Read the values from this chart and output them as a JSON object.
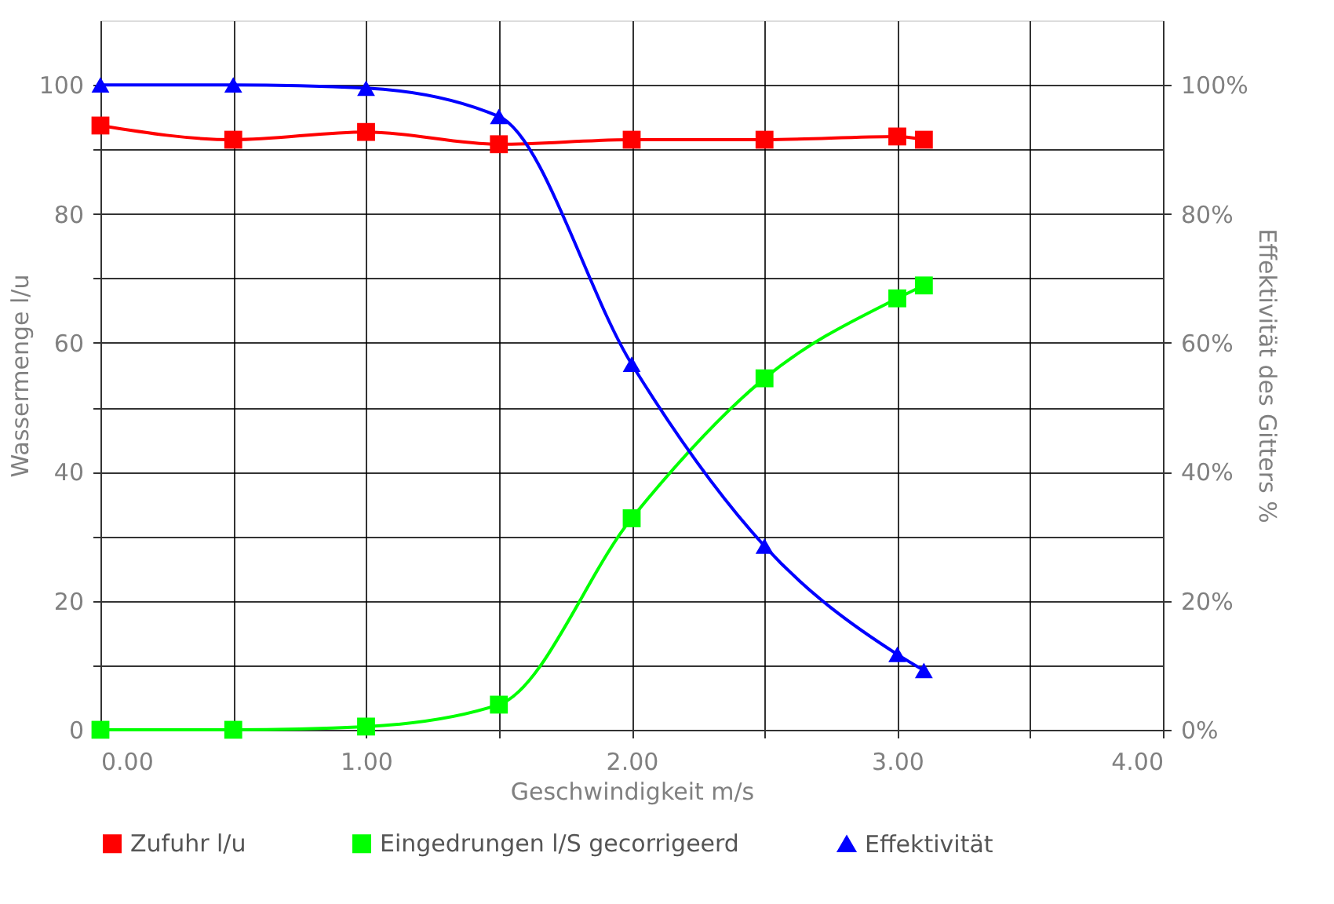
{
  "chart_data": {
    "type": "line",
    "xlabel": "Geschwindigkeit  m/s",
    "ylabel": "Wassermenge  l/u",
    "y2label": "Effektivität des Gitters %",
    "x": [
      0,
      0.5,
      1.0,
      1.5,
      2.0,
      2.5,
      3.0,
      3.1
    ],
    "series": [
      {
        "name": "Zufuhr  l/u",
        "color": "#ff0000",
        "marker": "square",
        "values": [
          93.7,
          91.5,
          92.7,
          90.8,
          91.5,
          91.5,
          92.0,
          91.5
        ]
      },
      {
        "name": "Eingedrungen l/S gecorrigeerd",
        "color": "#00ff00",
        "marker": "square",
        "values": [
          0,
          0,
          0.5,
          3.9,
          32.8,
          54.5,
          66.9,
          68.9
        ]
      },
      {
        "name": "Effektivität",
        "color": "#0000ff",
        "marker": "triangle",
        "axis": "y2",
        "values": [
          100,
          100,
          99.5,
          95.1,
          56.7,
          28.5,
          11.7,
          9.2
        ]
      }
    ],
    "xlim": [
      0,
      4
    ],
    "xticks": [
      {
        "value": 0,
        "label": "0.00"
      },
      {
        "value": 0.5,
        "label": null
      },
      {
        "value": 1,
        "label": "1.00"
      },
      {
        "value": 1.5,
        "label": null
      },
      {
        "value": 2,
        "label": "2.00"
      },
      {
        "value": 2.5,
        "label": null
      },
      {
        "value": 3,
        "label": "3.00"
      },
      {
        "value": 3.5,
        "label": null
      },
      {
        "value": 4,
        "label": "4.00"
      }
    ],
    "ylim": [
      0,
      110
    ],
    "yticks": [
      0,
      {
        "value": 10,
        "label": null
      },
      20,
      {
        "value": 30,
        "label": null
      },
      40,
      {
        "value": 50,
        "label": null
      },
      60,
      {
        "value": 70,
        "label": null
      },
      80,
      {
        "value": 90,
        "label": null
      },
      100
    ],
    "y2lim": [
      0,
      110
    ],
    "y2ticks": [
      {
        "value": 0,
        "label": "0%"
      },
      {
        "value": 20,
        "label": "20%"
      },
      {
        "value": 40,
        "label": "40%"
      },
      {
        "value": 60,
        "label": "60%"
      },
      {
        "value": 80,
        "label": "80%"
      },
      {
        "value": 100,
        "label": "100%"
      }
    ],
    "grid": true,
    "legend": "bottom",
    "line_style": "solid"
  }
}
